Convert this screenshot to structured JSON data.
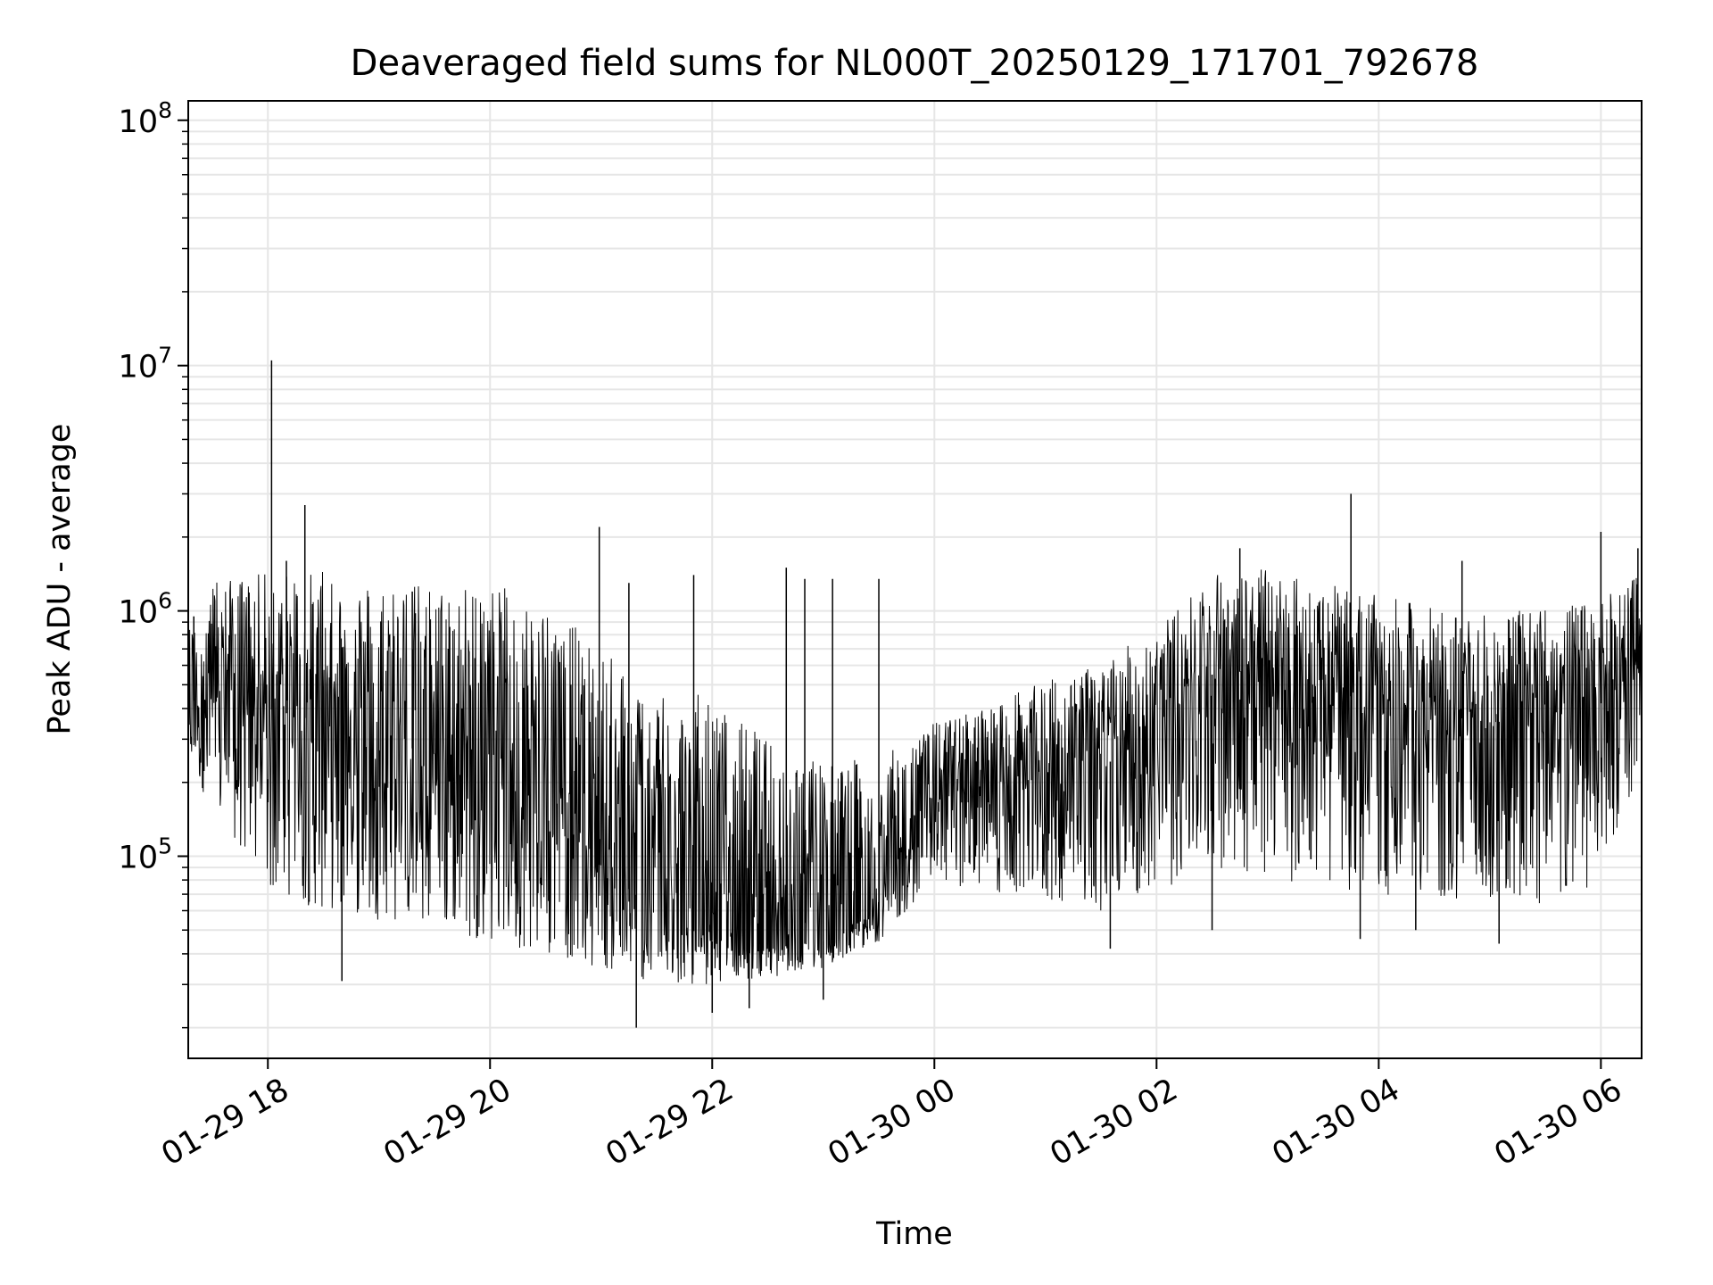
{
  "chart_data": {
    "type": "line",
    "title": "Deaveraged field sums for NL000T_20250129_171701_792678",
    "xlabel": "Time",
    "ylabel": "Peak ADU - average",
    "yscale": "log",
    "ylim": [
      15000,
      120000000
    ],
    "xlim": [
      "2025-01-29 17:17",
      "2025-01-30 06:22"
    ],
    "grid": true,
    "legend": "none",
    "line_color": "#000000",
    "x_ticks": [
      {
        "t": "2025-01-29 18:00",
        "label": "01-29 18"
      },
      {
        "t": "2025-01-29 20:00",
        "label": "01-29 20"
      },
      {
        "t": "2025-01-29 22:00",
        "label": "01-29 22"
      },
      {
        "t": "2025-01-30 00:00",
        "label": "01-30 00"
      },
      {
        "t": "2025-01-30 02:00",
        "label": "01-30 02"
      },
      {
        "t": "2025-01-30 04:00",
        "label": "01-30 04"
      },
      {
        "t": "2025-01-30 06:00",
        "label": "01-30 06"
      }
    ],
    "y_ticks": [
      {
        "v": 100000,
        "base": "10",
        "exp": "5"
      },
      {
        "v": 1000000,
        "base": "10",
        "exp": "6"
      },
      {
        "v": 10000000,
        "base": "10",
        "exp": "7"
      },
      {
        "v": 100000000,
        "base": "10",
        "exp": "8"
      }
    ],
    "series": [
      {
        "envelope": {
          "t": [
            "2025-01-29 17:17",
            "2025-01-29 17:30",
            "2025-01-29 18:00",
            "2025-01-29 18:30",
            "2025-01-29 19:00",
            "2025-01-29 19:30",
            "2025-01-29 20:00",
            "2025-01-29 20:30",
            "2025-01-29 21:00",
            "2025-01-29 21:30",
            "2025-01-29 22:00",
            "2025-01-29 22:30",
            "2025-01-29 23:00",
            "2025-01-29 23:30",
            "2025-01-30 00:00",
            "2025-01-30 00:30",
            "2025-01-30 01:00",
            "2025-01-30 01:30",
            "2025-01-30 02:00",
            "2025-01-30 02:30",
            "2025-01-30 03:00",
            "2025-01-30 03:30",
            "2025-01-30 04:00",
            "2025-01-30 04:30",
            "2025-01-30 05:00",
            "2025-01-30 05:30",
            "2025-01-30 06:00",
            "2025-01-30 06:22"
          ],
          "high": [
            900000,
            1300000,
            1450000,
            1450000,
            1350000,
            1300000,
            1300000,
            1100000,
            700000,
            500000,
            450000,
            300000,
            250000,
            250000,
            350000,
            420000,
            520000,
            620000,
            850000,
            1450000,
            1500000,
            1300000,
            1150000,
            1050000,
            950000,
            1050000,
            1100000,
            1500000
          ],
          "low": [
            250000,
            150000,
            70000,
            60000,
            55000,
            50000,
            45000,
            40000,
            35000,
            30000,
            30000,
            32000,
            35000,
            45000,
            80000,
            70000,
            65000,
            60000,
            70000,
            90000,
            80000,
            75000,
            70000,
            65000,
            60000,
            60000,
            70000,
            250000
          ],
          "median": [
            400000,
            550000,
            400000,
            350000,
            300000,
            260000,
            250000,
            190000,
            90000,
            60000,
            45000,
            42000,
            45000,
            60000,
            180000,
            190000,
            210000,
            230000,
            320000,
            550000,
            580000,
            480000,
            420000,
            380000,
            350000,
            370000,
            420000,
            600000
          ]
        },
        "spikes": [
          {
            "t": "2025-01-29 18:02",
            "v": 10500000
          },
          {
            "t": "2025-01-29 18:20",
            "v": 2700000
          },
          {
            "t": "2025-01-29 18:10",
            "v": 1600000
          },
          {
            "t": "2025-01-29 19:18",
            "v": 1200000
          },
          {
            "t": "2025-01-29 20:59",
            "v": 2200000
          },
          {
            "t": "2025-01-29 21:15",
            "v": 1300000
          },
          {
            "t": "2025-01-29 21:50",
            "v": 1400000
          },
          {
            "t": "2025-01-29 22:40",
            "v": 1500000
          },
          {
            "t": "2025-01-29 22:50",
            "v": 1350000
          },
          {
            "t": "2025-01-29 23:05",
            "v": 1350000
          },
          {
            "t": "2025-01-29 23:30",
            "v": 1350000
          },
          {
            "t": "2025-01-30 02:45",
            "v": 1800000
          },
          {
            "t": "2025-01-30 03:45",
            "v": 3000000
          },
          {
            "t": "2025-01-30 04:45",
            "v": 1600000
          },
          {
            "t": "2025-01-30 06:00",
            "v": 2100000
          },
          {
            "t": "2025-01-30 06:20",
            "v": 1800000
          },
          {
            "t": "2025-01-29 17:20",
            "v": 950000
          }
        ],
        "dips": [
          {
            "t": "2025-01-29 18:40",
            "v": 31000
          },
          {
            "t": "2025-01-29 21:19",
            "v": 20000
          },
          {
            "t": "2025-01-29 22:00",
            "v": 23000
          },
          {
            "t": "2025-01-29 22:20",
            "v": 24000
          },
          {
            "t": "2025-01-29 23:00",
            "v": 26000
          },
          {
            "t": "2025-01-30 01:35",
            "v": 42000
          },
          {
            "t": "2025-01-30 02:30",
            "v": 50000
          },
          {
            "t": "2025-01-30 03:50",
            "v": 46000
          },
          {
            "t": "2025-01-30 04:20",
            "v": 50000
          },
          {
            "t": "2025-01-30 05:05",
            "v": 44000
          }
        ]
      }
    ]
  }
}
